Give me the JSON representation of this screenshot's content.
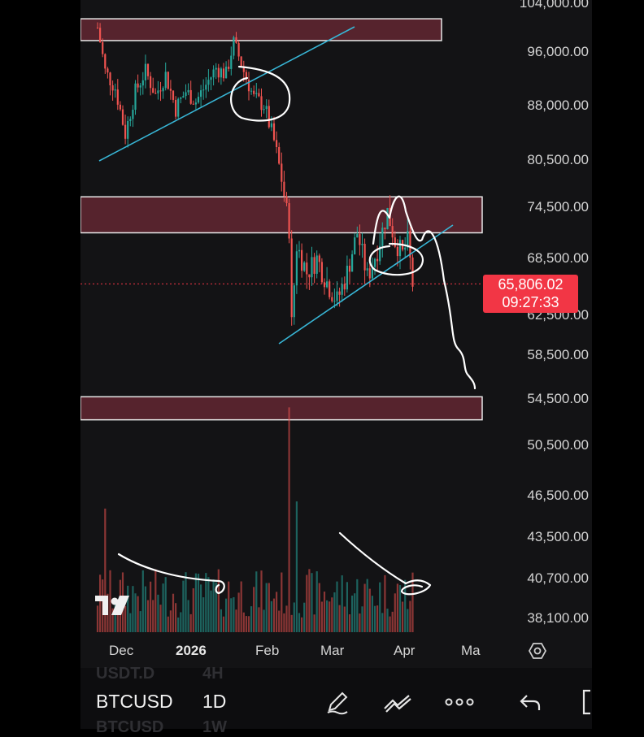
{
  "chart_data": {
    "type": "candlestick",
    "symbol": "BTCUSD",
    "interval": "1D",
    "y_ticks": [
      "104,000.00",
      "96,000.00",
      "88,000.00",
      "80,500.00",
      "74,500.00",
      "68,500.00",
      "62,500.00",
      "58,500.00",
      "54,500.00",
      "50,500.00",
      "46,500.00",
      "43,500.00",
      "40,700.00",
      "38,100.00"
    ],
    "x_ticks": [
      "Dec",
      "2026",
      "Feb",
      "Mar",
      "Apr",
      "Ma"
    ],
    "last_price": "65,806.02",
    "countdown": "09:27:33",
    "current_price_value": 65806.02,
    "price_series": [
      {
        "x": "Nov 21",
        "y": 100000
      },
      {
        "x": "Nov 24",
        "y": 93000
      },
      {
        "x": "Nov 28",
        "y": 90500
      },
      {
        "x": "Dec 2",
        "y": 84000
      },
      {
        "x": "Dec 6",
        "y": 90000
      },
      {
        "x": "Dec 10",
        "y": 93000
      },
      {
        "x": "Dec 14",
        "y": 89500
      },
      {
        "x": "Dec 18",
        "y": 92500
      },
      {
        "x": "Dec 22",
        "y": 87500
      },
      {
        "x": "Dec 26",
        "y": 90000
      },
      {
        "x": "Dec 30",
        "y": 88500
      },
      {
        "x": "Jan 3",
        "y": 91000
      },
      {
        "x": "Jan 7",
        "y": 93500
      },
      {
        "x": "Jan 11",
        "y": 92500
      },
      {
        "x": "Jan 14",
        "y": 97500
      },
      {
        "x": "Jan 18",
        "y": 93000
      },
      {
        "x": "Jan 22",
        "y": 89000
      },
      {
        "x": "Jan 26",
        "y": 88000
      },
      {
        "x": "Jan 30",
        "y": 83000
      },
      {
        "x": "Feb 2",
        "y": 78000
      },
      {
        "x": "Feb 5",
        "y": 72000
      },
      {
        "x": "Feb 6",
        "y": 61500
      },
      {
        "x": "Feb 8",
        "y": 70000
      },
      {
        "x": "Feb 12",
        "y": 67000
      },
      {
        "x": "Feb 16",
        "y": 68500
      },
      {
        "x": "Feb 20",
        "y": 66000
      },
      {
        "x": "Feb 24",
        "y": 64000
      },
      {
        "x": "Feb 28",
        "y": 67000
      },
      {
        "x": "Mar 4",
        "y": 71500
      },
      {
        "x": "Mar 8",
        "y": 66500
      },
      {
        "x": "Mar 12",
        "y": 69500
      },
      {
        "x": "Mar 16",
        "y": 74000
      },
      {
        "x": "Mar 19",
        "y": 70500
      },
      {
        "x": "Mar 22",
        "y": 69000
      },
      {
        "x": "Mar 24",
        "y": 70500
      },
      {
        "x": "Mar 26",
        "y": 65806
      }
    ],
    "zones": [
      {
        "from": 97800,
        "to": 101500
      },
      {
        "from": 71500,
        "to": 75800
      },
      {
        "from": 52700,
        "to": 54700
      }
    ],
    "colors": {
      "up": "#26a69a",
      "down": "#ef5350",
      "zone": "#6e2a35",
      "trendline": "#38b6d6",
      "price_badge": "#f23645",
      "background": "#131315"
    }
  },
  "toolbar": {
    "ghost_top": "USDT.D",
    "ghost_top_interval": "4H",
    "ghost_bottom": "BTCUSD",
    "ghost_bottom_interval": "1W",
    "icons": [
      "pencil-icon",
      "trend-line-icon",
      "more-icon",
      "undo-icon",
      "fullscreen-icon"
    ]
  },
  "watermark": "TV"
}
